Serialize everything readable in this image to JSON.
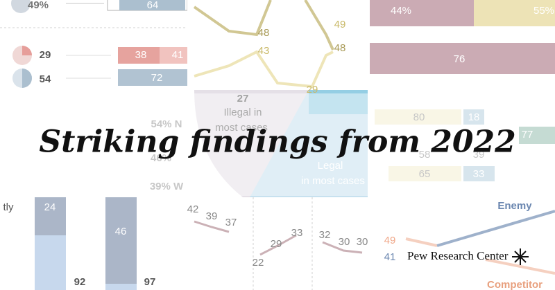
{
  "title": "Striking findings from 2022",
  "brand": "Pew Research Center",
  "background_labels": [
    "49%",
    "64",
    "48",
    "43",
    "49",
    "48",
    "29",
    "44%",
    "55%",
    "76",
    "29",
    "38",
    "41",
    "54",
    "72",
    "27",
    "Illegal in",
    "most cases",
    "Legal",
    "in most cases",
    "80",
    "18",
    "77",
    "58",
    "39",
    "65",
    "33",
    "54% N",
    "46%",
    "39% W",
    "tly",
    "24",
    "46",
    "92",
    "97",
    "42",
    "39",
    "37",
    "22",
    "29",
    "33",
    "32",
    "30",
    "30",
    "Enemy",
    "49",
    "41",
    "Competitor"
  ]
}
